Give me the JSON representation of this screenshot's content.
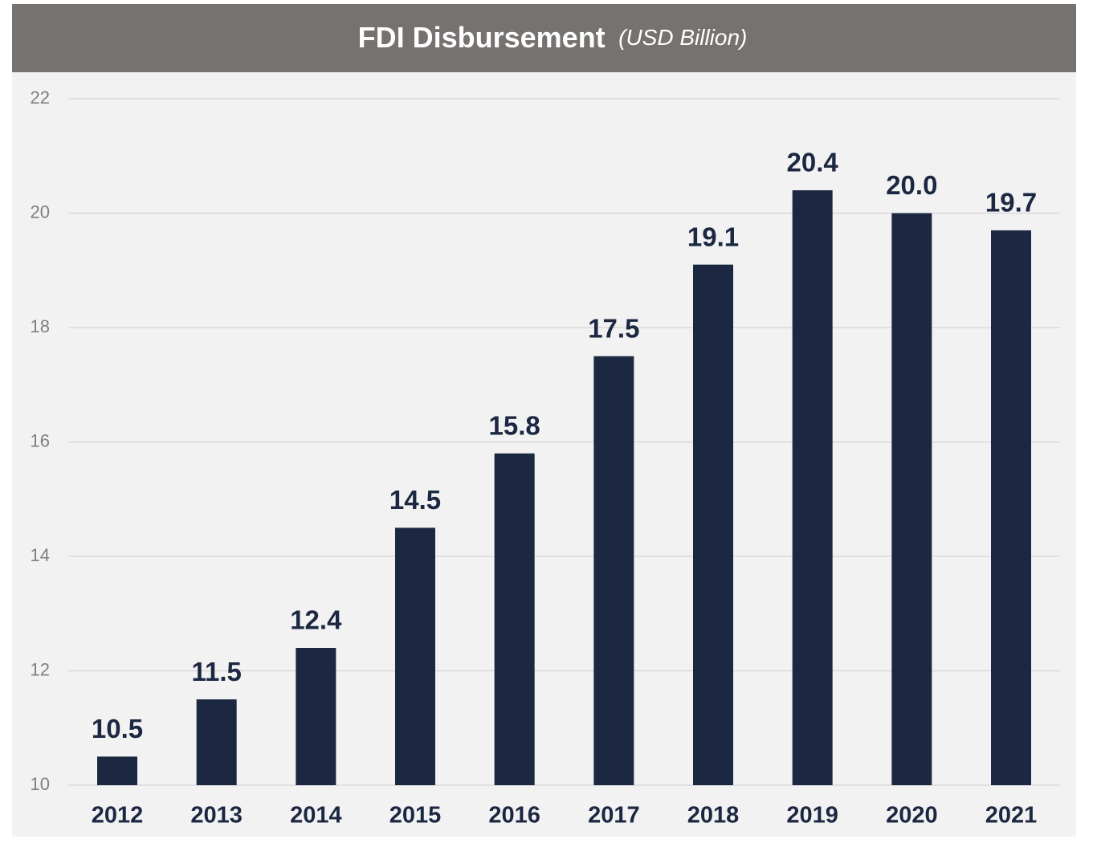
{
  "chart_data": {
    "type": "bar",
    "title": "FDI Disbursement",
    "subtitle": "(USD Billion)",
    "categories": [
      "2012",
      "2013",
      "2014",
      "2015",
      "2016",
      "2017",
      "2018",
      "2019",
      "2020",
      "2021"
    ],
    "values": [
      10.5,
      11.5,
      12.4,
      14.5,
      15.8,
      17.5,
      19.1,
      20.4,
      20.0,
      19.7
    ],
    "value_labels": [
      "10.5",
      "11.5",
      "12.4",
      "14.5",
      "15.8",
      "17.5",
      "19.1",
      "20.4",
      "20.0",
      "19.7"
    ],
    "color": "#1c2841",
    "ylim": [
      10,
      22
    ],
    "yticks": [
      10,
      12,
      14,
      16,
      18,
      20,
      22
    ],
    "grid": true
  }
}
